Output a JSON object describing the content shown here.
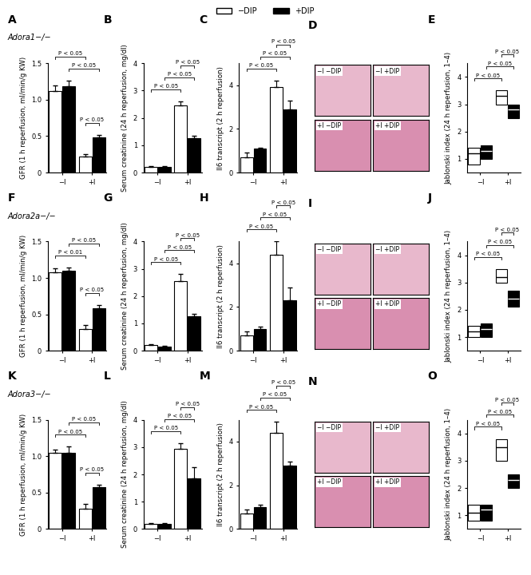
{
  "chart_data": [
    {
      "type": "bar",
      "title": "A",
      "subtitle": "Adora1−/−",
      "legend": "upper center",
      "ylabel": "GFR (1 h reperfusion, ml/min/g KW)",
      "categories": [
        "−I",
        "+I"
      ],
      "series": [
        {
          "name": "−DIP",
          "color": "#ffffff",
          "values": [
            1.12,
            0.22
          ],
          "errors": [
            0.07,
            0.03
          ]
        },
        {
          "name": "+DIP",
          "color": "#000000",
          "values": [
            1.18,
            0.48
          ],
          "errors": [
            0.08,
            0.04
          ]
        }
      ],
      "ylim": [
        0,
        1.5
      ],
      "yticks": [
        0,
        0.5,
        {
          "value": 1,
          "label": "1.0"
        },
        1.5
      ],
      "annotations": [
        {
          "text": "P < 0.05",
          "bars": [
            0,
            2
          ]
        },
        {
          "text": "P < 0.05",
          "bars": [
            1,
            3
          ]
        },
        {
          "text": "P < 0.05",
          "bars": [
            2,
            3
          ]
        }
      ]
    },
    {
      "type": "bar",
      "title": "B",
      "ylabel": "Serum creatinine (24 h reperfusion, mg/dl)",
      "categories": [
        "−I",
        "+I"
      ],
      "series": [
        {
          "name": "−DIP",
          "color": "#ffffff",
          "values": [
            0.2,
            2.45
          ],
          "errors": [
            0.03,
            0.15
          ]
        },
        {
          "name": "+DIP",
          "color": "#000000",
          "values": [
            0.2,
            1.25
          ],
          "errors": [
            0.03,
            0.1
          ]
        }
      ],
      "ylim": [
        0,
        4
      ],
      "yticks": [
        0,
        1,
        2,
        3,
        4
      ],
      "annotations": [
        {
          "text": "P < 0.05",
          "bars": [
            2,
            3
          ]
        },
        {
          "text": "P < 0.05",
          "bars": [
            1,
            3
          ]
        },
        {
          "text": "P < 0.05",
          "bars": [
            0,
            2
          ]
        }
      ]
    },
    {
      "type": "bar",
      "title": "C",
      "ylabel": "Il6 transcript (2 h reperfusion)",
      "categories": [
        "−I",
        "+I"
      ],
      "series": [
        {
          "name": "−DIP",
          "color": "#ffffff",
          "values": [
            0.7,
            3.9
          ],
          "errors": [
            0.2,
            0.3
          ]
        },
        {
          "name": "+DIP",
          "color": "#000000",
          "values": [
            1.1,
            2.9
          ],
          "errors": [
            0.05,
            0.4
          ]
        }
      ],
      "ylim": [
        0,
        5
      ],
      "yticks": [
        0,
        2,
        4
      ],
      "annotations": [
        {
          "text": "P < 0.05",
          "bars": [
            2,
            3
          ]
        },
        {
          "text": "P < 0.05",
          "bars": [
            1,
            3
          ]
        },
        {
          "text": "P < 0.05",
          "bars": [
            0,
            2
          ]
        }
      ]
    },
    {
      "type": "image",
      "title": "D",
      "annotations": [
        "−I −DIP",
        "−I +DIP",
        "+I −DIP",
        "+I +DIP"
      ]
    },
    {
      "type": "box",
      "title": "E",
      "ylabel": "Jablonski index (24 h reperfusion, 1–4)",
      "categories": [
        "−I",
        "+I"
      ],
      "series": [
        {
          "name": "−DIP",
          "color": "#ffffff",
          "values": [
            1.2,
            3.3
          ],
          "low": [
            0.8,
            3.0
          ],
          "high": [
            1.4,
            3.5
          ]
        },
        {
          "name": "+DIP",
          "color": "#000000",
          "values": [
            1.3,
            2.8
          ],
          "low": [
            1.0,
            2.5
          ],
          "high": [
            1.5,
            3.0
          ]
        }
      ],
      "ylim": [
        0.5,
        4.5
      ],
      "yticks": [
        1,
        2,
        3,
        4
      ],
      "annotations": [
        {
          "text": "P < 0.05",
          "bars": [
            2,
            3
          ]
        },
        {
          "text": "P < 0.05",
          "bars": [
            1,
            3
          ]
        },
        {
          "text": "P < 0.05",
          "bars": [
            0,
            2
          ]
        }
      ]
    },
    {
      "type": "bar",
      "title": "F",
      "subtitle": "Adora2a−/−",
      "ylabel": "GFR (1 h reperfusion, ml/min/g KW)",
      "categories": [
        "−I",
        "+I"
      ],
      "series": [
        {
          "name": "−DIP",
          "color": "#ffffff",
          "values": [
            1.08,
            0.3
          ],
          "errors": [
            0.05,
            0.05
          ]
        },
        {
          "name": "+DIP",
          "color": "#000000",
          "values": [
            1.1,
            0.58
          ],
          "errors": [
            0.04,
            0.05
          ]
        }
      ],
      "ylim": [
        0,
        1.5
      ],
      "yticks": [
        0,
        0.5,
        {
          "value": 1,
          "label": "1.0"
        },
        1.5
      ],
      "annotations": [
        {
          "text": "P < 0.05",
          "bars": [
            1,
            3
          ]
        },
        {
          "text": "P < 0.01",
          "bars": [
            0,
            2
          ]
        },
        {
          "text": "P < 0.05",
          "bars": [
            2,
            3
          ]
        }
      ]
    },
    {
      "type": "bar",
      "title": "G",
      "ylabel": "Serum creatinine (24 h reperfusion, mg/dl)",
      "categories": [
        "−I",
        "+I"
      ],
      "series": [
        {
          "name": "−DIP",
          "color": "#ffffff",
          "values": [
            0.2,
            2.55
          ],
          "errors": [
            0.03,
            0.25
          ]
        },
        {
          "name": "+DIP",
          "color": "#000000",
          "values": [
            0.15,
            1.25
          ],
          "errors": [
            0.03,
            0.1
          ]
        }
      ],
      "ylim": [
        0,
        4
      ],
      "yticks": [
        0,
        1,
        2,
        3,
        4
      ],
      "annotations": [
        {
          "text": "P < 0.05",
          "bars": [
            2,
            3
          ]
        },
        {
          "text": "P < 0.05",
          "bars": [
            1,
            3
          ]
        },
        {
          "text": "P < 0.05",
          "bars": [
            0,
            2
          ]
        }
      ]
    },
    {
      "type": "bar",
      "title": "H",
      "ylabel": "Il6 transcript (2 h reperfusion)",
      "categories": [
        "−I",
        "+I"
      ],
      "series": [
        {
          "name": "−DIP",
          "color": "#ffffff",
          "values": [
            0.7,
            4.4
          ],
          "errors": [
            0.2,
            0.6
          ]
        },
        {
          "name": "+DIP",
          "color": "#000000",
          "values": [
            1.0,
            2.3
          ],
          "errors": [
            0.1,
            0.6
          ]
        }
      ],
      "ylim": [
        0,
        5
      ],
      "yticks": [
        0,
        2,
        4
      ],
      "annotations": [
        {
          "text": "P < 0.05",
          "bars": [
            2,
            3
          ]
        },
        {
          "text": "P < 0.05",
          "bars": [
            1,
            3
          ]
        },
        {
          "text": "P < 0.05",
          "bars": [
            0,
            2
          ]
        }
      ]
    },
    {
      "type": "image",
      "title": "I",
      "annotations": [
        "−I −DIP",
        "−I +DIP",
        "+I −DIP",
        "+I +DIP"
      ]
    },
    {
      "type": "box",
      "title": "J",
      "ylabel": "Jablonski index (24 h reperfusion, 1–4)",
      "categories": [
        "−I",
        "+I"
      ],
      "series": [
        {
          "name": "−DIP",
          "color": "#ffffff",
          "values": [
            1.2,
            3.2
          ],
          "low": [
            1.0,
            3.0
          ],
          "high": [
            1.4,
            3.5
          ]
        },
        {
          "name": "+DIP",
          "color": "#000000",
          "values": [
            1.3,
            2.4
          ],
          "low": [
            1.0,
            2.1
          ],
          "high": [
            1.5,
            2.7
          ]
        }
      ],
      "ylim": [
        0.5,
        4.5
      ],
      "yticks": [
        1,
        2,
        3,
        4
      ],
      "annotations": [
        {
          "text": "P < 0.05",
          "bars": [
            2,
            3
          ]
        },
        {
          "text": "P < 0.05",
          "bars": [
            1,
            3
          ]
        },
        {
          "text": "P < 0.05",
          "bars": [
            0,
            2
          ]
        }
      ]
    },
    {
      "type": "bar",
      "title": "K",
      "subtitle": "Adora3−/−",
      "ylabel": "GFR (1 h reperfusion, ml/min/g KW)",
      "categories": [
        "−I",
        "+I"
      ],
      "series": [
        {
          "name": "−DIP",
          "color": "#ffffff",
          "values": [
            1.05,
            0.28
          ],
          "errors": [
            0.04,
            0.06
          ]
        },
        {
          "name": "+DIP",
          "color": "#000000",
          "values": [
            1.05,
            0.58
          ],
          "errors": [
            0.08,
            0.03
          ]
        }
      ],
      "ylim": [
        0,
        1.5
      ],
      "yticks": [
        0,
        0.5,
        {
          "value": 1,
          "label": "1.0"
        },
        1.5
      ],
      "annotations": [
        {
          "text": "P < 0.05",
          "bars": [
            1,
            3
          ]
        },
        {
          "text": "P < 0.05",
          "bars": [
            0,
            2
          ]
        },
        {
          "text": "P < 0.05",
          "bars": [
            2,
            3
          ]
        }
      ]
    },
    {
      "type": "bar",
      "title": "L",
      "ylabel": "Serum creatinine (24 h reperfusion, mg/dl)",
      "categories": [
        "−I",
        "+I"
      ],
      "series": [
        {
          "name": "−DIP",
          "color": "#ffffff",
          "values": [
            0.2,
            2.95
          ],
          "errors": [
            0.03,
            0.2
          ]
        },
        {
          "name": "+DIP",
          "color": "#000000",
          "values": [
            0.2,
            1.85
          ],
          "errors": [
            0.03,
            0.4
          ]
        }
      ],
      "ylim": [
        0,
        4
      ],
      "yticks": [
        0,
        1,
        2,
        3,
        4
      ],
      "annotations": [
        {
          "text": "P < 0.05",
          "bars": [
            2,
            3
          ]
        },
        {
          "text": "P < 0.05",
          "bars": [
            1,
            3
          ]
        },
        {
          "text": "P < 0.05",
          "bars": [
            0,
            2
          ]
        }
      ]
    },
    {
      "type": "bar",
      "title": "M",
      "ylabel": "Il6 transcript (2 h reperfusion)",
      "categories": [
        "−I",
        "+I"
      ],
      "series": [
        {
          "name": "−DIP",
          "color": "#ffffff",
          "values": [
            0.7,
            4.4
          ],
          "errors": [
            0.2,
            0.5
          ]
        },
        {
          "name": "+DIP",
          "color": "#000000",
          "values": [
            1.0,
            2.9
          ],
          "errors": [
            0.1,
            0.2
          ]
        }
      ],
      "ylim": [
        0,
        5
      ],
      "yticks": [
        0,
        2,
        4
      ],
      "annotations": [
        {
          "text": "P < 0.05",
          "bars": [
            2,
            3
          ]
        },
        {
          "text": "P < 0.05",
          "bars": [
            1,
            3
          ]
        },
        {
          "text": "P < 0.05",
          "bars": [
            0,
            2
          ]
        }
      ]
    },
    {
      "type": "image",
      "title": "N",
      "annotations": [
        "−I −DIP",
        "−I +DIP",
        "+I −DIP",
        "+I +DIP"
      ]
    },
    {
      "type": "box",
      "title": "O",
      "ylabel": "Jablonski index (24 h reperfusion, 1–4)",
      "categories": [
        "−I",
        "+I"
      ],
      "series": [
        {
          "name": "−DIP",
          "color": "#ffffff",
          "values": [
            1.1,
            3.5
          ],
          "low": [
            0.8,
            3.0
          ],
          "high": [
            1.4,
            3.8
          ]
        },
        {
          "name": "+DIP",
          "color": "#000000",
          "values": [
            1.2,
            2.3
          ],
          "low": [
            0.8,
            2.0
          ],
          "high": [
            1.4,
            2.5
          ]
        }
      ],
      "ylim": [
        0.5,
        4.5
      ],
      "yticks": [
        1,
        2,
        3,
        4
      ],
      "annotations": [
        {
          "text": "P < 0.05",
          "bars": [
            2,
            3
          ]
        },
        {
          "text": "P < 0.05",
          "bars": [
            1,
            3
          ]
        },
        {
          "text": "P < 0.05",
          "bars": [
            0,
            2
          ]
        }
      ]
    }
  ]
}
